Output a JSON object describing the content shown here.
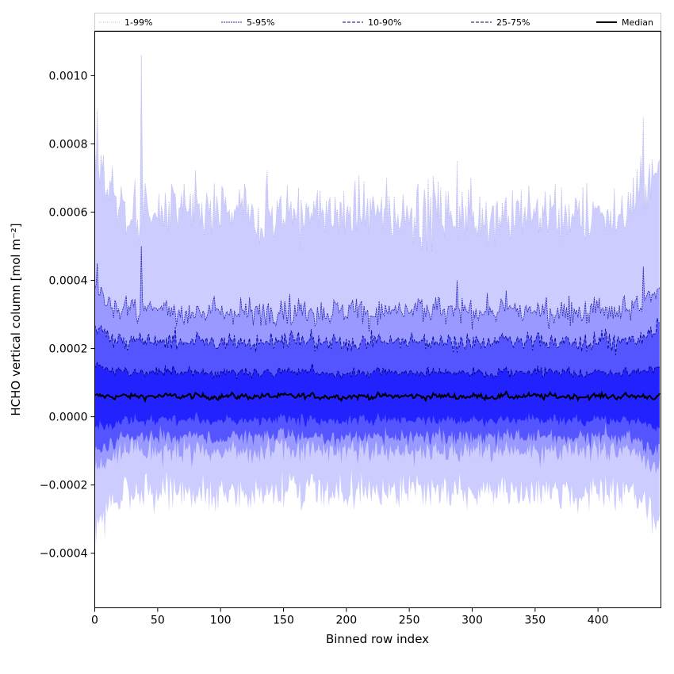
{
  "chart_data": {
    "type": "area",
    "title": "",
    "xlabel": "Binned row index",
    "ylabel": "HCHO vertical column [mol m⁻²]",
    "xlim": [
      0,
      450
    ],
    "ylim": [
      -0.00056,
      0.00113
    ],
    "xticks": [
      0,
      50,
      100,
      150,
      200,
      250,
      300,
      350,
      400
    ],
    "xtick_labels": [
      "0",
      "50",
      "100",
      "150",
      "200",
      "250",
      "300",
      "350",
      "400"
    ],
    "yticks": [
      -0.0004,
      -0.0002,
      0.0,
      0.0002,
      0.0004,
      0.0006,
      0.0008,
      0.001
    ],
    "ytick_labels": [
      "−0.0004",
      "−0.0002",
      "0.0000",
      "0.0002",
      "0.0004",
      "0.0006",
      "0.0008",
      "0.0010"
    ],
    "grid": false,
    "legend_position": "top (above plot, single row)",
    "n_points": 450,
    "median_mean": 6e-05,
    "series": [
      {
        "name": "1-99%",
        "lower_mean": -0.00022,
        "upper_mean": 0.0006,
        "fill": "#ccccff",
        "line": "#b4b4e6",
        "style": "dotted"
      },
      {
        "name": "5-95%",
        "lower_mean": -0.0001,
        "upper_mean": 0.00031,
        "fill": "#9999ff",
        "line": "#2020aa",
        "style": "dashed-fine"
      },
      {
        "name": "10-90%",
        "lower_mean": -6e-05,
        "upper_mean": 0.00022,
        "fill": "#5555ff",
        "line": "#00008b",
        "style": "dashed"
      },
      {
        "name": "25-75%",
        "lower_mean": -1e-05,
        "upper_mean": 0.00013,
        "fill": "#2222ff",
        "line": "#00006b",
        "style": "dashed"
      },
      {
        "name": "Median",
        "value_mean": 6e-05,
        "line": "#000000",
        "style": "solid"
      }
    ],
    "spikes": [
      {
        "x": 37,
        "max": 0.00106,
        "p95": 0.0005
      },
      {
        "x": 288,
        "max": 0.00075,
        "p95": 0.0004
      },
      {
        "x": 2,
        "max": 0.0009,
        "p95": 0.00045
      },
      {
        "x": 436,
        "max": 0.00088,
        "p95": 0.00044
      },
      {
        "x": 368,
        "max": 0.00055,
        "p95": 0.00032
      }
    ]
  }
}
